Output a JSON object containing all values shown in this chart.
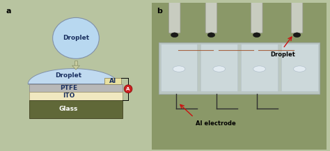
{
  "bg_color": "#b8c4a0",
  "panel_a_label": "a",
  "panel_b_label": "b",
  "label_fontsize": 8,
  "droplet_circle_fc": "#b8d8f0",
  "droplet_circle_ec": "#8090a8",
  "droplet_text": "Droplet",
  "droplet_text_color": "#1a3060",
  "arrow_fc": "#c8cca0",
  "arrow_ec": "#909870",
  "flat_droplet_fc": "#c0daf0",
  "flat_droplet_ec": "#8090a8",
  "ptfe_fc": "#b8b8b8",
  "ptfe_ec": "#909090",
  "ptfe_text": "PTFE",
  "ito_fc": "#f0e8c0",
  "ito_ec": "#a09870",
  "ito_text": "ITO",
  "glass_fc": "#606838",
  "glass_ec": "#404020",
  "glass_text": "Glass",
  "layer_text_color": "#1a3060",
  "al_fc": "#e8e0a0",
  "al_ec": "#908860",
  "al_text": "Al",
  "ammeter_fc": "#cc2020",
  "ammeter_ec": "#881010",
  "ammeter_text": "A",
  "photo_bg": "#8a9868",
  "photo_device_fc": "#d0dce8",
  "photo_tube_fc": "#d8d8d0",
  "photo_tube_ec": "#a8a8a0",
  "photo_drop_fc": "#282820",
  "photo_wire_color": "#704030",
  "photo_bracket_color": "#303030",
  "droplet_label": "Droplet",
  "al_electrode_label": "Al electrode",
  "red_arrow": "#cc1010",
  "layer_fontsize": 6.5,
  "annot_fontsize": 6
}
